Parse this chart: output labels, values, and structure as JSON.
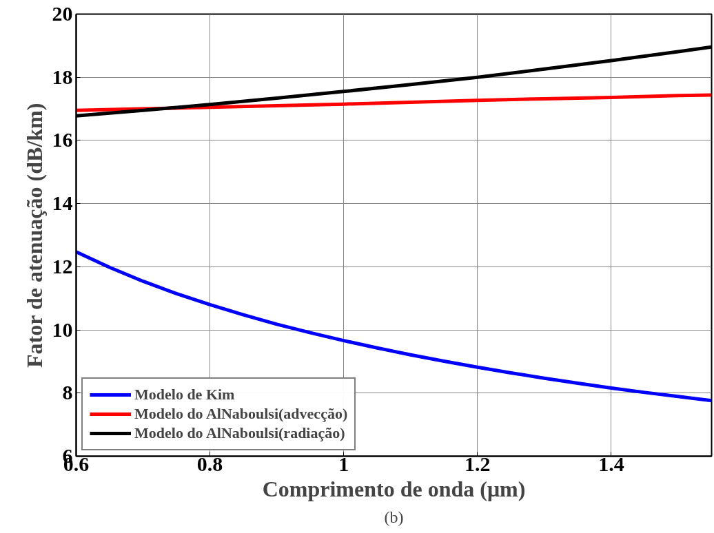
{
  "chart_data": {
    "type": "line",
    "xlabel": "Comprimento de onda (μm)",
    "ylabel": "Fator de atenuação (dB/km)",
    "annotations": [
      "(b)"
    ],
    "xlim": [
      0.6,
      1.55
    ],
    "xticks": [
      0.6,
      0.8,
      1,
      1.2,
      1.4
    ],
    "ylim": [
      6,
      20
    ],
    "yticks": [
      6,
      8,
      10,
      12,
      14,
      16,
      18,
      20
    ],
    "grid": true,
    "legend": "bottom left",
    "marker": "none",
    "line_style": "solid",
    "series": [
      {
        "name": "Modelo de Kim",
        "color": "#0000ff",
        "x": [
          0.6,
          0.65,
          0.7,
          0.75,
          0.8,
          0.85,
          0.9,
          0.95,
          1.0,
          1.05,
          1.1,
          1.15,
          1.2,
          1.25,
          1.3,
          1.35,
          1.4,
          1.45,
          1.5,
          1.55
        ],
        "values": [
          12.47,
          11.98,
          11.54,
          11.15,
          10.8,
          10.48,
          10.18,
          9.91,
          9.66,
          9.43,
          9.21,
          9.01,
          8.82,
          8.64,
          8.47,
          8.31,
          8.16,
          8.02,
          7.89,
          7.76
        ]
      },
      {
        "name": "Modelo do AlNaboulsi(advecção)",
        "color": "#ff0000",
        "x": [
          0.6,
          0.7,
          0.8,
          0.9,
          1.0,
          1.1,
          1.2,
          1.3,
          1.4,
          1.5,
          1.55
        ],
        "values": [
          16.95,
          17.0,
          17.05,
          17.1,
          17.15,
          17.21,
          17.27,
          17.32,
          17.36,
          17.42,
          17.44
        ]
      },
      {
        "name": "Modelo do AlNaboulsi(radiação)",
        "color": "#000000",
        "x": [
          0.6,
          0.7,
          0.8,
          0.9,
          1.0,
          1.1,
          1.2,
          1.3,
          1.4,
          1.5,
          1.55
        ],
        "values": [
          16.78,
          16.95,
          17.14,
          17.34,
          17.55,
          17.77,
          18.0,
          18.26,
          18.53,
          18.81,
          18.96
        ]
      }
    ]
  }
}
